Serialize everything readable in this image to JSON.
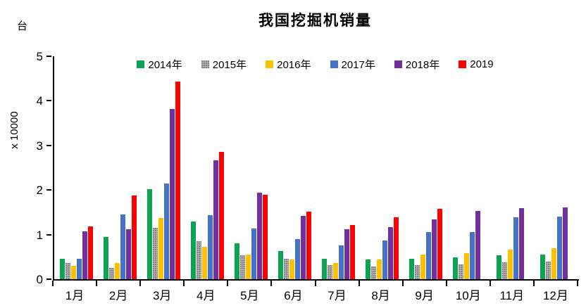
{
  "chart_data": {
    "type": "bar",
    "title": "我国挖掘机销量",
    "unit_label": "台",
    "ylabel": "x 10000",
    "xlabel": "",
    "ylim": [
      0,
      5
    ],
    "y_ticks": [
      0,
      1,
      2,
      3,
      4,
      5
    ],
    "grid": false,
    "legend_position": "top-center",
    "categories": [
      "1月",
      "2月",
      "3月",
      "4月",
      "5月",
      "6月",
      "7月",
      "8月",
      "9月",
      "10月",
      "11月",
      "12月"
    ],
    "series": [
      {
        "name": "2014年",
        "color": "#0CA352",
        "texture": "solid",
        "values": [
          0.46,
          0.95,
          2.02,
          1.29,
          0.81,
          0.63,
          0.45,
          0.44,
          0.46,
          0.49,
          0.53,
          0.55
        ]
      },
      {
        "name": "2015年",
        "color": "#B3B3B3",
        "texture": "dots",
        "values": [
          0.37,
          0.26,
          1.15,
          0.85,
          0.54,
          0.46,
          0.31,
          0.29,
          0.32,
          0.33,
          0.38,
          0.39
        ]
      },
      {
        "name": "2016年",
        "color": "#FFC000",
        "texture": "solid",
        "values": [
          0.3,
          0.37,
          1.37,
          0.72,
          0.56,
          0.44,
          0.36,
          0.44,
          0.55,
          0.58,
          0.66,
          0.7
        ]
      },
      {
        "name": "2017年",
        "color": "#4472C4",
        "texture": "solid",
        "values": [
          0.46,
          1.45,
          2.14,
          1.44,
          1.14,
          0.9,
          0.76,
          0.87,
          1.05,
          1.05,
          1.39,
          1.41
        ]
      },
      {
        "name": "2018年",
        "color": "#7030A0",
        "texture": "solid",
        "values": [
          1.07,
          1.12,
          3.82,
          2.66,
          1.94,
          1.42,
          1.12,
          1.17,
          1.34,
          1.53,
          1.59,
          1.61
        ]
      },
      {
        "name": "2019",
        "color": "#FF0000",
        "texture": "solid",
        "values": [
          1.18,
          1.87,
          4.43,
          2.85,
          1.89,
          1.52,
          1.22,
          1.39,
          1.58,
          null,
          null,
          null
        ]
      }
    ]
  }
}
